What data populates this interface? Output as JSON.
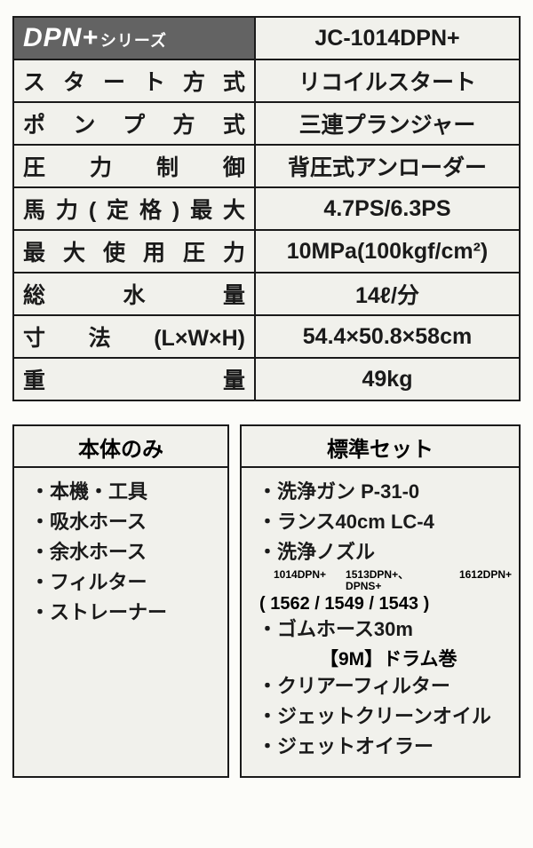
{
  "specTable": {
    "header": {
      "seriesName": "DPN+",
      "seriesSuffix": "シリーズ",
      "model": "JC-1014DPN+"
    },
    "rows": [
      {
        "label": "スタート方式",
        "value": "リコイルスタート"
      },
      {
        "label": "ポンプ方式",
        "value": "三連プランジャー"
      },
      {
        "label": "圧力制御",
        "value": "背圧式アンローダー"
      },
      {
        "label": "馬力(定格)最大",
        "value": "4.7PS/6.3PS"
      },
      {
        "label": "最大使用圧力",
        "value": "10MPa(100kgf/cm²)"
      },
      {
        "label": "総水量",
        "value": "14ℓ/分"
      },
      {
        "label": "寸法(L×W×H)",
        "value": "54.4×50.8×58cm"
      },
      {
        "label": "重量",
        "value": "49kg"
      }
    ]
  },
  "leftBox": {
    "title": "本体のみ",
    "items": [
      "・本機・工具",
      "・吸水ホース",
      "・余水ホース",
      "・フィルター",
      "・ストレーナー"
    ]
  },
  "rightBox": {
    "title": "標準セット",
    "items": {
      "gun": "・洗浄ガン P-31-0",
      "lance": "・ランス40cm LC-4",
      "nozzle": "・洗浄ノズル",
      "nozzleNote1": "1014DPN+",
      "nozzleNote2": "1513DPN+、DPNS+",
      "nozzleNote3": "1612DPN+",
      "nozzleValues": "( 1562 / 1549 / 1543 )",
      "hose": "・ゴムホース30m",
      "hoseSub": "【9M】ドラム巻",
      "clearFilter": "・クリアーフィルター",
      "jetCleanOil": "・ジェットクリーンオイル",
      "jetOiler": "・ジェットオイラー"
    }
  },
  "style": {
    "border_color": "#1a1a1a",
    "background_color": "#fcfcf9",
    "cell_background": "#f1f1ec",
    "header_background": "#636363",
    "header_text_color": "#ffffff",
    "text_color": "#1a1a1a",
    "table_border_width": 2.5,
    "title_fontsize": 24,
    "label_fontsize": 25,
    "value_fontsize": 25,
    "item_fontsize": 22
  }
}
